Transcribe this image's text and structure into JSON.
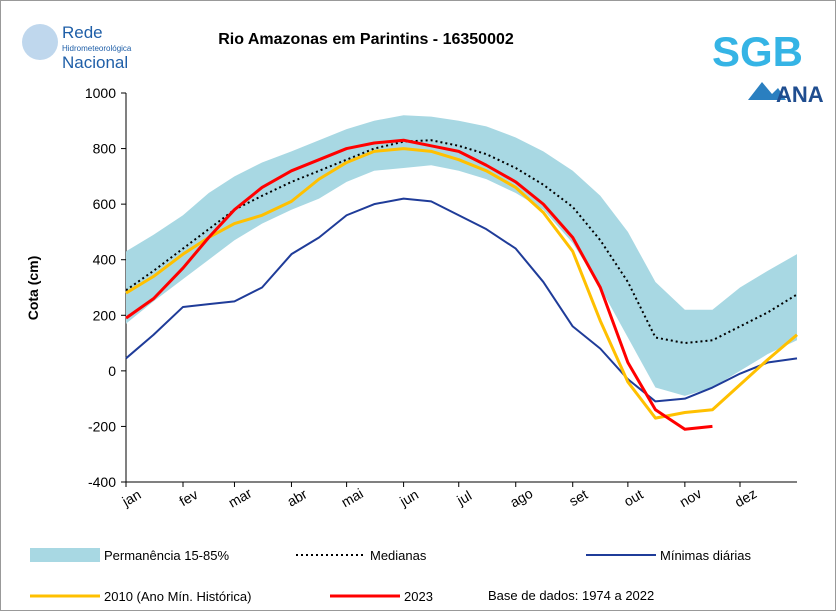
{
  "logos": {
    "left": [
      "Rede",
      "Hidrometeorológica",
      "Nacional"
    ],
    "right": [
      "SGB",
      "ANA"
    ]
  },
  "chart_data": {
    "type": "line",
    "title": "Rio Amazonas em Parintins - 16350002",
    "y_label": "Cota (cm)",
    "annotation": "Base de dados: 1974 a 2022",
    "x": [
      0,
      15,
      31,
      45,
      59,
      74,
      90,
      105,
      120,
      135,
      151,
      166,
      181,
      196,
      212,
      227,
      243,
      258,
      273,
      288,
      304,
      319,
      334,
      349,
      365
    ],
    "xlim": [
      0,
      365
    ],
    "xticks": [
      {
        "value": 0,
        "label": "jan"
      },
      {
        "value": 31,
        "label": "fev"
      },
      {
        "value": 59,
        "label": "mar"
      },
      {
        "value": 90,
        "label": "abr"
      },
      {
        "value": 120,
        "label": "mai"
      },
      {
        "value": 151,
        "label": "jun"
      },
      {
        "value": 181,
        "label": "jul"
      },
      {
        "value": 212,
        "label": "ago"
      },
      {
        "value": 243,
        "label": "set"
      },
      {
        "value": 273,
        "label": "out"
      },
      {
        "value": 304,
        "label": "nov"
      },
      {
        "value": 334,
        "label": "dez"
      }
    ],
    "ylim": [
      -400,
      1000
    ],
    "yticks": [
      -400,
      -200,
      0,
      200,
      400,
      600,
      800,
      1000
    ],
    "grid": false,
    "series": [
      {
        "name": "Permanência 15-85%",
        "kind": "band",
        "color": "#a8d8e3",
        "low": [
          170,
          250,
          330,
          400,
          470,
          530,
          580,
          620,
          680,
          720,
          730,
          740,
          720,
          690,
          640,
          580,
          460,
          300,
          120,
          -60,
          -90,
          -60,
          0,
          60,
          110
        ],
        "high": [
          430,
          490,
          560,
          640,
          700,
          750,
          790,
          830,
          870,
          900,
          920,
          915,
          900,
          880,
          840,
          790,
          720,
          630,
          500,
          320,
          220,
          220,
          300,
          360,
          420
        ]
      },
      {
        "name": "Medianas",
        "kind": "line",
        "color": "#000000",
        "dash": "dotted",
        "width": 2,
        "values": [
          290,
          360,
          440,
          510,
          580,
          630,
          680,
          720,
          760,
          800,
          825,
          830,
          810,
          780,
          730,
          670,
          590,
          470,
          320,
          120,
          100,
          110,
          160,
          210,
          275
        ]
      },
      {
        "name": "Mínimas diárias",
        "kind": "line",
        "color": "#1f3c99",
        "width": 2,
        "values": [
          45,
          130,
          230,
          240,
          250,
          300,
          420,
          480,
          560,
          600,
          620,
          610,
          560,
          510,
          440,
          320,
          160,
          80,
          -30,
          -110,
          -100,
          -60,
          -10,
          30,
          45
        ]
      },
      {
        "name": "2010 (Ano Mín. Histórica)",
        "kind": "line",
        "color": "#ffc000",
        "width": 3,
        "values": [
          280,
          340,
          420,
          480,
          530,
          560,
          610,
          690,
          750,
          790,
          800,
          790,
          760,
          720,
          660,
          570,
          430,
          180,
          -40,
          -170,
          -150,
          -140,
          -50,
          40,
          130
        ]
      },
      {
        "name": "2023",
        "kind": "line",
        "color": "#ff0000",
        "width": 3,
        "values": [
          190,
          260,
          370,
          480,
          580,
          660,
          720,
          760,
          800,
          820,
          830,
          810,
          790,
          740,
          680,
          600,
          480,
          300,
          30,
          -140,
          -210,
          -200,
          null,
          null,
          null
        ]
      }
    ]
  }
}
